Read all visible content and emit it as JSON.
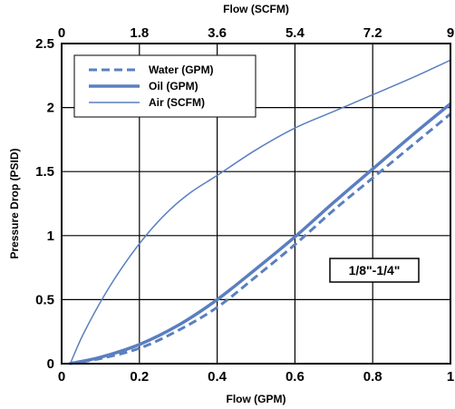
{
  "chart_data": {
    "type": "line",
    "title": "",
    "xlabel": "Flow (GPM)",
    "x2label": "Flow (SCFM)",
    "ylabel": "Pressure Drop (PSID)",
    "xlim": [
      0,
      1
    ],
    "x2lim": [
      0,
      9
    ],
    "ylim": [
      0,
      2.5
    ],
    "x_ticks": [
      "0",
      "0.2",
      "0.4",
      "0.6",
      "0.8",
      "1"
    ],
    "x2_ticks": [
      "0",
      "1.8",
      "3.6",
      "5.4",
      "7.2",
      "9"
    ],
    "y_ticks": [
      "0",
      "0.5",
      "1",
      "1.5",
      "2",
      "2.5"
    ],
    "grid": true,
    "legend_position": "top-left",
    "annotation": "1/8\"-1/4\"",
    "series": [
      {
        "name": "Water (GPM)",
        "axis": "bottom",
        "style": "dashed",
        "color": "#5a7fc0",
        "x": [
          0.02,
          0.1,
          0.2,
          0.3,
          0.4,
          0.5,
          0.6,
          0.7,
          0.8,
          0.9,
          1.0
        ],
        "y": [
          0,
          0.04,
          0.12,
          0.26,
          0.44,
          0.68,
          0.93,
          1.2,
          1.45,
          1.7,
          1.95
        ]
      },
      {
        "name": "Oil (GPM)",
        "axis": "bottom",
        "style": "solid-thick",
        "color": "#5a7fc0",
        "x": [
          0.02,
          0.1,
          0.2,
          0.3,
          0.4,
          0.5,
          0.6,
          0.7,
          0.8,
          0.9,
          1.0
        ],
        "y": [
          0,
          0.05,
          0.15,
          0.3,
          0.5,
          0.74,
          0.99,
          1.26,
          1.52,
          1.78,
          2.03
        ]
      },
      {
        "name": "Air (SCFM)",
        "axis": "top",
        "style": "solid-thin",
        "color": "#5a7fc0",
        "x": [
          0.2,
          0.5,
          1.0,
          1.5,
          2.0,
          2.5,
          3.0,
          3.6,
          4.5,
          5.4,
          6.3,
          7.2,
          8.1,
          9.0
        ],
        "y": [
          0,
          0.23,
          0.54,
          0.8,
          1.02,
          1.2,
          1.34,
          1.47,
          1.67,
          1.84,
          1.97,
          2.1,
          2.23,
          2.37
        ]
      }
    ]
  }
}
